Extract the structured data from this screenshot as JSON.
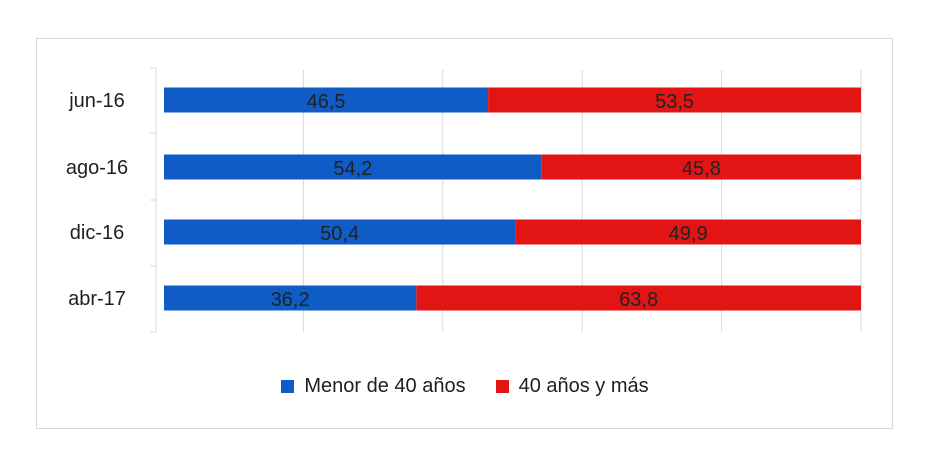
{
  "chart_data": {
    "type": "bar",
    "orientation": "horizontal",
    "stacked": true,
    "categories": [
      "jun-16",
      "ago-16",
      "dic-16",
      "abr-17"
    ],
    "series": [
      {
        "name": "Menor de 40 años",
        "color": "#0f5cc7",
        "values": [
          46.5,
          54.2,
          50.4,
          36.2
        ],
        "labels": [
          "46,5",
          "54,2",
          "50,4",
          "36,2"
        ]
      },
      {
        "name": "40 años y más",
        "color": "#e31414",
        "values": [
          53.5,
          45.8,
          49.9,
          63.8
        ],
        "labels": [
          "53,5",
          "45,8",
          "49,9",
          "63,8"
        ]
      }
    ],
    "xlim": [
      0,
      100
    ],
    "grid": true,
    "legend_position": "bottom"
  }
}
